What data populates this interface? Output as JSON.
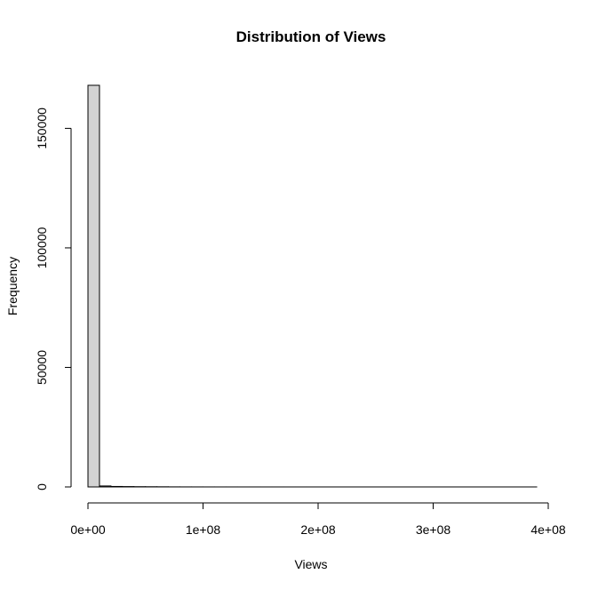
{
  "chart_data": {
    "type": "bar",
    "title": "Distribution of Views",
    "xlabel": "Views",
    "ylabel": "Frequency",
    "bin_width": 10000000,
    "bins": [
      {
        "start": 0,
        "end": 10000000,
        "count": 168000
      },
      {
        "start": 10000000,
        "end": 20000000,
        "count": 400
      },
      {
        "start": 20000000,
        "end": 30000000,
        "count": 200
      },
      {
        "start": 30000000,
        "end": 40000000,
        "count": 150
      },
      {
        "start": 40000000,
        "end": 50000000,
        "count": 100
      },
      {
        "start": 50000000,
        "end": 60000000,
        "count": 80
      },
      {
        "start": 60000000,
        "end": 70000000,
        "count": 60
      },
      {
        "start": 70000000,
        "end": 80000000,
        "count": 30
      },
      {
        "start": 80000000,
        "end": 90000000,
        "count": 20
      },
      {
        "start": 90000000,
        "end": 100000000,
        "count": 15
      },
      {
        "start": 100000000,
        "end": 110000000,
        "count": 10
      },
      {
        "start": 110000000,
        "end": 120000000,
        "count": 8
      },
      {
        "start": 120000000,
        "end": 130000000,
        "count": 6
      },
      {
        "start": 130000000,
        "end": 140000000,
        "count": 5
      },
      {
        "start": 140000000,
        "end": 150000000,
        "count": 4
      },
      {
        "start": 150000000,
        "end": 160000000,
        "count": 3
      },
      {
        "start": 160000000,
        "end": 170000000,
        "count": 3
      },
      {
        "start": 170000000,
        "end": 180000000,
        "count": 2
      },
      {
        "start": 180000000,
        "end": 190000000,
        "count": 2
      },
      {
        "start": 190000000,
        "end": 200000000,
        "count": 2
      },
      {
        "start": 200000000,
        "end": 210000000,
        "count": 1
      },
      {
        "start": 210000000,
        "end": 220000000,
        "count": 1
      },
      {
        "start": 220000000,
        "end": 230000000,
        "count": 1
      },
      {
        "start": 230000000,
        "end": 240000000,
        "count": 1
      },
      {
        "start": 240000000,
        "end": 250000000,
        "count": 1
      },
      {
        "start": 250000000,
        "end": 260000000,
        "count": 1
      },
      {
        "start": 260000000,
        "end": 270000000,
        "count": 1
      },
      {
        "start": 270000000,
        "end": 280000000,
        "count": 1
      },
      {
        "start": 280000000,
        "end": 290000000,
        "count": 1
      },
      {
        "start": 290000000,
        "end": 300000000,
        "count": 1
      },
      {
        "start": 300000000,
        "end": 310000000,
        "count": 1
      },
      {
        "start": 310000000,
        "end": 320000000,
        "count": 1
      },
      {
        "start": 320000000,
        "end": 330000000,
        "count": 1
      },
      {
        "start": 330000000,
        "end": 340000000,
        "count": 1
      },
      {
        "start": 340000000,
        "end": 350000000,
        "count": 1
      },
      {
        "start": 350000000,
        "end": 360000000,
        "count": 1
      },
      {
        "start": 360000000,
        "end": 370000000,
        "count": 1
      },
      {
        "start": 370000000,
        "end": 380000000,
        "count": 1
      },
      {
        "start": 380000000,
        "end": 390000000,
        "count": 1
      }
    ],
    "xlim": [
      0,
      400000000
    ],
    "ylim": [
      0,
      168000
    ],
    "x_ticks": [
      {
        "value": 0,
        "label": "0e+00"
      },
      {
        "value": 100000000,
        "label": "1e+08"
      },
      {
        "value": 200000000,
        "label": "2e+08"
      },
      {
        "value": 300000000,
        "label": "3e+08"
      },
      {
        "value": 400000000,
        "label": "4e+08"
      }
    ],
    "y_ticks": [
      {
        "value": 0,
        "label": "0"
      },
      {
        "value": 50000,
        "label": "50000"
      },
      {
        "value": 100000,
        "label": "100000"
      },
      {
        "value": 150000,
        "label": "150000"
      }
    ],
    "grid": false,
    "bar_fill": "#d3d3d3",
    "bar_stroke": "#000000"
  }
}
